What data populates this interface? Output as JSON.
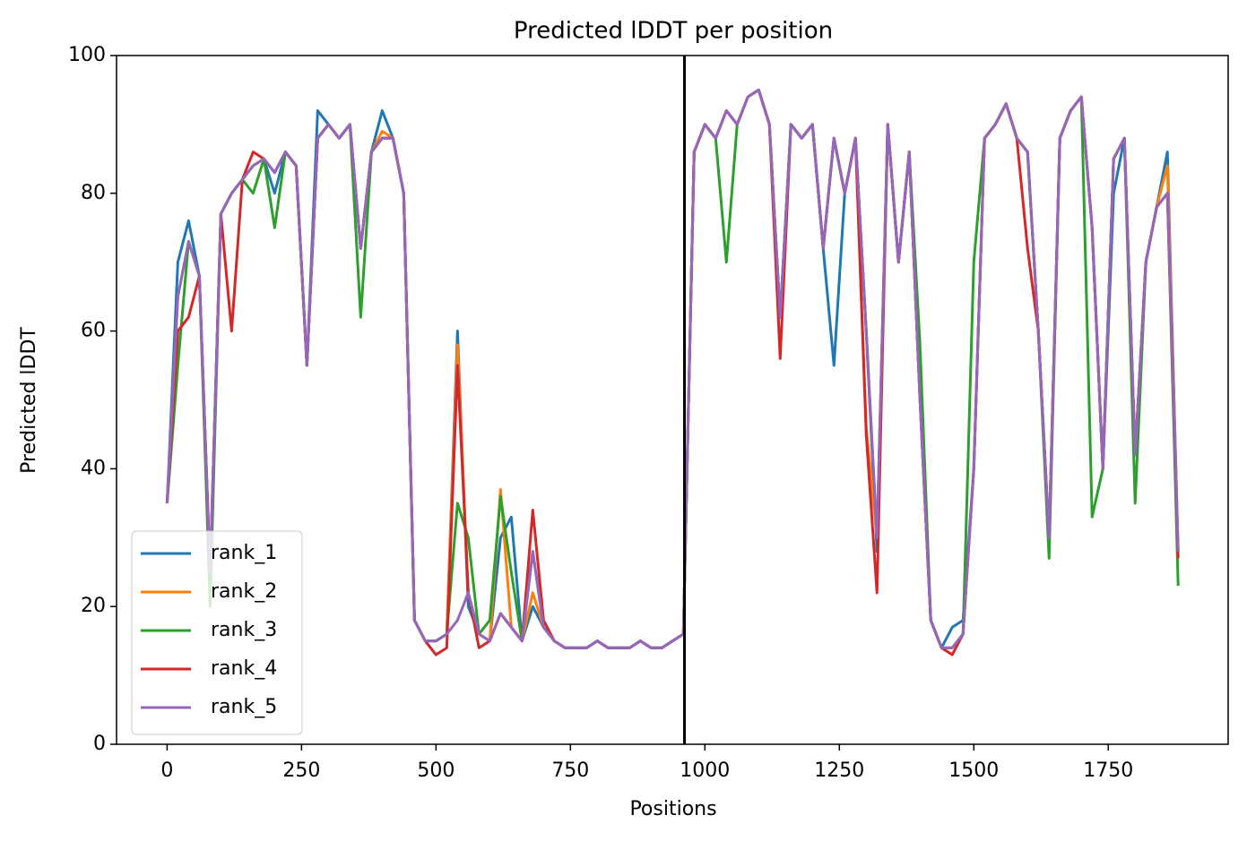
{
  "chart_data": {
    "type": "line",
    "title": "Predicted lDDT per position",
    "xlabel": "Positions",
    "ylabel": "Predicted lDDT",
    "x": [
      0,
      20,
      40,
      60,
      80,
      100,
      120,
      140,
      160,
      180,
      200,
      220,
      240,
      260,
      280,
      300,
      320,
      340,
      360,
      380,
      400,
      420,
      440,
      460,
      480,
      500,
      520,
      540,
      560,
      580,
      600,
      620,
      640,
      660,
      680,
      700,
      720,
      740,
      760,
      780,
      800,
      820,
      840,
      860,
      880,
      900,
      920,
      940,
      960,
      980,
      1000,
      1020,
      1040,
      1060,
      1080,
      1100,
      1120,
      1140,
      1160,
      1180,
      1200,
      1220,
      1240,
      1260,
      1280,
      1300,
      1320,
      1340,
      1360,
      1380,
      1400,
      1420,
      1440,
      1460,
      1480,
      1500,
      1520,
      1540,
      1560,
      1580,
      1600,
      1620,
      1640,
      1660,
      1680,
      1700,
      1720,
      1740,
      1760,
      1780,
      1800,
      1820,
      1840,
      1860,
      1880
    ],
    "series": [
      {
        "name": "rank_1",
        "color": "#1f77b4",
        "values": [
          35,
          70,
          76,
          68,
          25,
          77,
          80,
          82,
          84,
          85,
          80,
          86,
          84,
          55,
          92,
          90,
          88,
          90,
          72,
          86,
          92,
          88,
          80,
          18,
          15,
          15,
          16,
          60,
          20,
          16,
          15,
          30,
          33,
          15,
          20,
          17,
          15,
          14,
          14,
          14,
          15,
          14,
          14,
          14,
          15,
          14,
          14,
          15,
          16,
          86,
          90,
          88,
          92,
          90,
          94,
          95,
          90,
          62,
          90,
          88,
          90,
          72,
          55,
          80,
          88,
          60,
          28,
          90,
          70,
          86,
          50,
          18,
          14,
          17,
          18,
          40,
          88,
          90,
          93,
          88,
          86,
          60,
          30,
          88,
          92,
          94,
          75,
          40,
          80,
          88,
          42,
          70,
          78,
          86,
          28
        ]
      },
      {
        "name": "rank_2",
        "color": "#ff7f0e",
        "values": [
          35,
          65,
          73,
          68,
          25,
          77,
          80,
          82,
          84,
          85,
          83,
          86,
          84,
          55,
          88,
          90,
          88,
          90,
          72,
          86,
          89,
          88,
          80,
          18,
          15,
          15,
          16,
          58,
          22,
          16,
          15,
          37,
          17,
          15,
          22,
          17,
          15,
          14,
          14,
          14,
          15,
          14,
          14,
          14,
          15,
          14,
          14,
          15,
          16,
          86,
          90,
          88,
          92,
          90,
          94,
          95,
          90,
          62,
          90,
          88,
          90,
          72,
          88,
          80,
          88,
          46,
          30,
          90,
          70,
          86,
          50,
          18,
          14,
          14,
          16,
          40,
          88,
          90,
          93,
          88,
          86,
          60,
          30,
          88,
          92,
          94,
          75,
          40,
          85,
          88,
          42,
          70,
          78,
          84,
          28
        ]
      },
      {
        "name": "rank_3",
        "color": "#2ca02c",
        "values": [
          35,
          55,
          73,
          68,
          20,
          77,
          80,
          82,
          80,
          85,
          75,
          86,
          84,
          55,
          88,
          90,
          88,
          90,
          62,
          86,
          88,
          88,
          80,
          18,
          15,
          15,
          16,
          35,
          30,
          16,
          18,
          36,
          25,
          15,
          28,
          17,
          15,
          14,
          14,
          14,
          15,
          14,
          14,
          14,
          15,
          14,
          14,
          15,
          16,
          86,
          90,
          88,
          70,
          90,
          94,
          95,
          90,
          62,
          90,
          88,
          90,
          72,
          88,
          80,
          88,
          60,
          30,
          90,
          70,
          86,
          58,
          18,
          14,
          14,
          16,
          70,
          88,
          90,
          93,
          88,
          86,
          60,
          27,
          88,
          92,
          94,
          33,
          40,
          85,
          88,
          35,
          70,
          78,
          80,
          23
        ]
      },
      {
        "name": "rank_4",
        "color": "#d62728",
        "values": [
          35,
          60,
          62,
          68,
          25,
          77,
          60,
          82,
          86,
          85,
          83,
          86,
          84,
          55,
          88,
          90,
          88,
          90,
          72,
          86,
          88,
          88,
          80,
          18,
          15,
          13,
          14,
          55,
          22,
          14,
          15,
          19,
          17,
          15,
          34,
          18,
          15,
          14,
          14,
          14,
          15,
          14,
          14,
          14,
          15,
          14,
          14,
          15,
          16,
          86,
          90,
          88,
          92,
          90,
          94,
          95,
          90,
          56,
          90,
          88,
          90,
          72,
          88,
          80,
          88,
          45,
          22,
          90,
          70,
          86,
          50,
          18,
          14,
          13,
          16,
          40,
          88,
          90,
          93,
          88,
          72,
          60,
          30,
          88,
          92,
          94,
          75,
          40,
          85,
          88,
          42,
          70,
          78,
          80,
          27
        ]
      },
      {
        "name": "rank_5",
        "color": "#9467bd",
        "values": [
          35,
          65,
          73,
          68,
          25,
          77,
          80,
          82,
          84,
          85,
          83,
          86,
          84,
          55,
          88,
          90,
          88,
          90,
          72,
          86,
          88,
          88,
          80,
          18,
          15,
          15,
          16,
          18,
          22,
          16,
          15,
          19,
          17,
          15,
          28,
          17,
          15,
          14,
          14,
          14,
          15,
          14,
          14,
          14,
          15,
          14,
          14,
          15,
          16,
          86,
          90,
          88,
          92,
          90,
          94,
          95,
          90,
          62,
          90,
          88,
          90,
          72,
          88,
          80,
          88,
          60,
          30,
          90,
          70,
          86,
          50,
          18,
          14,
          14,
          16,
          40,
          88,
          90,
          93,
          88,
          86,
          60,
          30,
          88,
          92,
          94,
          75,
          40,
          85,
          88,
          42,
          70,
          78,
          80,
          28
        ]
      }
    ],
    "vline": 962,
    "xlim": [
      -94,
      1973
    ],
    "xticks": [
      0,
      250,
      500,
      750,
      1000,
      1250,
      1500,
      1750
    ],
    "ylim": [
      0,
      100
    ],
    "yticks": [
      0,
      20,
      40,
      60,
      80,
      100
    ],
    "grid": false,
    "legend": "lower left"
  }
}
